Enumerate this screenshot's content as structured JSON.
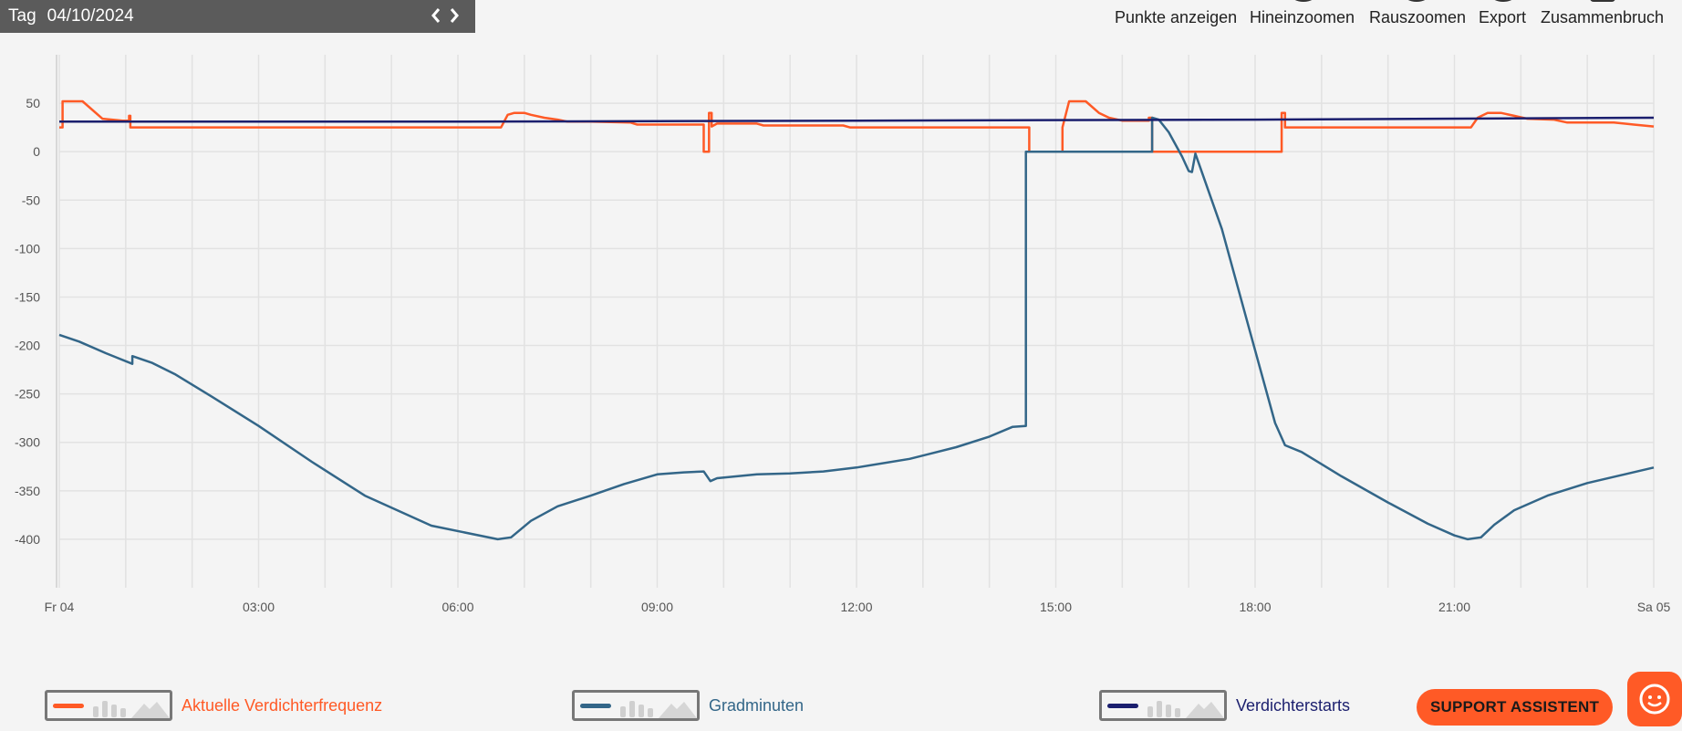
{
  "datebar": {
    "label": "Tag",
    "date": "04/10/2024"
  },
  "toolbar": {
    "show_points": "Punkte anzeigen",
    "zoom_in": "Hineinzoomen",
    "zoom_out": "Rauszoomen",
    "export": "Export",
    "break_label": "Zusammenbruch"
  },
  "colors": {
    "frequency": "#ff5a26",
    "degree_minutes": "#336688",
    "compressor_starts": "#1b1f6e",
    "grid": "#e2e2e2",
    "background": "#f4f4f4"
  },
  "chart_data": {
    "type": "line",
    "x_unit": "hours since Fr 04 00:00",
    "xlim": [
      0,
      24
    ],
    "ylim": [
      -450,
      100
    ],
    "yticks": [
      50,
      0,
      -50,
      -100,
      -150,
      -200,
      -250,
      -300,
      -350,
      -400
    ],
    "xticks": [
      {
        "x": 0,
        "label": "Fr 04"
      },
      {
        "x": 3,
        "label": "03:00"
      },
      {
        "x": 6,
        "label": "06:00"
      },
      {
        "x": 9,
        "label": "09:00"
      },
      {
        "x": 12,
        "label": "12:00"
      },
      {
        "x": 15,
        "label": "15:00"
      },
      {
        "x": 18,
        "label": "18:00"
      },
      {
        "x": 21,
        "label": "21:00"
      },
      {
        "x": 24,
        "label": "Sa 05"
      }
    ],
    "grid": true,
    "legend_position": "bottom",
    "series": [
      {
        "name": "Aktuelle Verdichterfrequenz",
        "color": "#ff5a26",
        "points": [
          [
            0.0,
            25
          ],
          [
            0.05,
            25
          ],
          [
            0.05,
            52
          ],
          [
            0.35,
            52
          ],
          [
            0.65,
            34
          ],
          [
            0.95,
            32
          ],
          [
            1.05,
            32
          ],
          [
            1.05,
            37
          ],
          [
            1.07,
            37
          ],
          [
            1.07,
            25
          ],
          [
            6.65,
            25
          ],
          [
            6.75,
            38
          ],
          [
            6.85,
            40
          ],
          [
            7.0,
            40
          ],
          [
            7.1,
            38
          ],
          [
            7.3,
            35
          ],
          [
            7.5,
            33
          ],
          [
            7.65,
            31
          ],
          [
            8.0,
            31
          ],
          [
            8.6,
            30
          ],
          [
            8.7,
            28
          ],
          [
            9.6,
            28
          ],
          [
            9.7,
            28
          ],
          [
            9.7,
            0
          ],
          [
            9.78,
            0
          ],
          [
            9.78,
            40
          ],
          [
            9.82,
            40
          ],
          [
            9.82,
            26
          ],
          [
            9.9,
            29
          ],
          [
            10.5,
            29
          ],
          [
            10.6,
            27
          ],
          [
            11.8,
            27
          ],
          [
            11.9,
            25
          ],
          [
            14.6,
            25
          ],
          [
            14.6,
            0
          ],
          [
            15.1,
            0
          ],
          [
            15.1,
            25
          ],
          [
            15.2,
            52
          ],
          [
            15.45,
            52
          ],
          [
            15.65,
            40
          ],
          [
            15.8,
            35
          ],
          [
            16.0,
            32
          ],
          [
            16.4,
            32
          ],
          [
            16.4,
            35
          ],
          [
            16.45,
            35
          ],
          [
            16.45,
            0
          ],
          [
            18.4,
            0
          ],
          [
            18.4,
            40
          ],
          [
            18.45,
            40
          ],
          [
            18.45,
            25
          ],
          [
            21.25,
            25
          ],
          [
            21.35,
            35
          ],
          [
            21.5,
            40
          ],
          [
            21.7,
            40
          ],
          [
            21.9,
            37
          ],
          [
            22.1,
            34
          ],
          [
            22.5,
            33
          ],
          [
            22.7,
            30
          ],
          [
            23.4,
            30
          ],
          [
            23.7,
            28
          ],
          [
            24.0,
            26
          ]
        ]
      },
      {
        "name": "Gradminuten",
        "color": "#336688",
        "points": [
          [
            0.0,
            -189
          ],
          [
            0.3,
            -196
          ],
          [
            0.7,
            -208
          ],
          [
            1.1,
            -219
          ],
          [
            1.1,
            -211
          ],
          [
            1.4,
            -218
          ],
          [
            1.75,
            -230
          ],
          [
            2.3,
            -253
          ],
          [
            3.0,
            -283
          ],
          [
            3.8,
            -320
          ],
          [
            4.6,
            -355
          ],
          [
            5.6,
            -386
          ],
          [
            6.6,
            -400
          ],
          [
            6.8,
            -398
          ],
          [
            7.1,
            -381
          ],
          [
            7.5,
            -366
          ],
          [
            8.0,
            -355
          ],
          [
            8.5,
            -343
          ],
          [
            9.0,
            -333
          ],
          [
            9.4,
            -331
          ],
          [
            9.7,
            -330
          ],
          [
            9.8,
            -340
          ],
          [
            9.9,
            -337
          ],
          [
            10.5,
            -333
          ],
          [
            11.0,
            -332
          ],
          [
            11.5,
            -330
          ],
          [
            12.0,
            -326
          ],
          [
            12.8,
            -317
          ],
          [
            13.5,
            -305
          ],
          [
            14.0,
            -294
          ],
          [
            14.35,
            -284
          ],
          [
            14.55,
            -283
          ],
          [
            14.55,
            0
          ],
          [
            16.45,
            0
          ],
          [
            16.45,
            35
          ],
          [
            16.55,
            33
          ],
          [
            16.7,
            20
          ],
          [
            16.9,
            -5
          ],
          [
            17.0,
            -20
          ],
          [
            17.05,
            -21
          ],
          [
            17.1,
            -2
          ],
          [
            17.5,
            -80
          ],
          [
            17.9,
            -180
          ],
          [
            18.3,
            -280
          ],
          [
            18.45,
            -303
          ],
          [
            18.7,
            -310
          ],
          [
            19.3,
            -335
          ],
          [
            20.0,
            -362
          ],
          [
            20.6,
            -384
          ],
          [
            21.0,
            -396
          ],
          [
            21.2,
            -400
          ],
          [
            21.4,
            -398
          ],
          [
            21.6,
            -385
          ],
          [
            21.9,
            -370
          ],
          [
            22.4,
            -355
          ],
          [
            23.0,
            -342
          ],
          [
            23.5,
            -334
          ],
          [
            24.0,
            -326
          ]
        ]
      },
      {
        "name": "Verdichterstarts",
        "color": "#1b1f6e",
        "points": [
          [
            0.0,
            31
          ],
          [
            6.0,
            31
          ],
          [
            12.0,
            32
          ],
          [
            18.0,
            33
          ],
          [
            24.0,
            35
          ]
        ]
      }
    ]
  },
  "legend": [
    {
      "name": "Aktuelle Verdichterfrequenz",
      "color": "#ff5a26"
    },
    {
      "name": "Gradminuten",
      "color": "#336688"
    },
    {
      "name": "Verdichterstarts",
      "color": "#1b1f6e"
    }
  ],
  "support": {
    "label": "SUPPORT ASSISTENT"
  }
}
